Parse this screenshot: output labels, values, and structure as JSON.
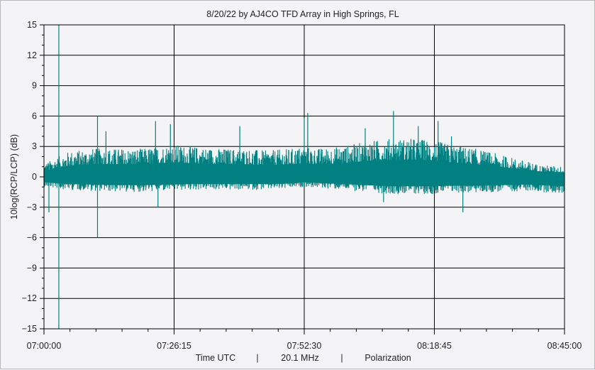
{
  "chart_data": {
    "type": "line",
    "title": "8/20/22  by  AJ4CO TFD Array  in  High Springs, FL",
    "ylabel": "10log(RCP/LCP) (dB)",
    "xlabel_parts": [
      "Time UTC",
      "|",
      "20.1 MHz",
      "|",
      "Polarization"
    ],
    "ylim": [
      -15,
      15
    ],
    "yticks": [
      15,
      12,
      9,
      6,
      3,
      0,
      -3,
      -6,
      -9,
      -12,
      -15
    ],
    "ytick_labels": [
      "15",
      "12",
      "9",
      "6",
      "3",
      "0",
      "−3",
      "−6",
      "−9",
      "−12",
      "−15"
    ],
    "xlim_minutes": [
      0,
      105
    ],
    "xticks_minutes": [
      0,
      26.25,
      52.5,
      78.75,
      105
    ],
    "xtick_labels": [
      "07:00:00",
      "07:26:15",
      "07:52:30",
      "08:18:45",
      "08:45:00"
    ],
    "grid": true,
    "series": [
      {
        "color": "#008080",
        "envelope": {
          "time_minutes": [
            0,
            5,
            10,
            15,
            20,
            26,
            30,
            35,
            40,
            45,
            50,
            52.5,
            55,
            60,
            65,
            70,
            75,
            78.75,
            82,
            87,
            92,
            97,
            100,
            105
          ],
          "upper_db": [
            1.3,
            2.5,
            2.8,
            2.8,
            2.8,
            3.2,
            3.0,
            2.8,
            2.8,
            2.6,
            2.8,
            3.0,
            2.8,
            3.0,
            3.5,
            3.8,
            3.8,
            3.6,
            3.2,
            2.8,
            2.2,
            1.6,
            1.2,
            1.0
          ],
          "lower_db": [
            -1.0,
            -1.3,
            -1.4,
            -1.5,
            -1.5,
            -1.4,
            -1.3,
            -1.3,
            -1.3,
            -1.3,
            -1.2,
            -1.0,
            -1.1,
            -1.3,
            -1.5,
            -1.7,
            -1.7,
            -1.7,
            -1.6,
            -1.6,
            -1.5,
            -1.4,
            -1.5,
            -1.7
          ]
        },
        "spikes": [
          {
            "t": 3,
            "y": 15
          },
          {
            "t": 3,
            "y": -15
          },
          {
            "t": 1,
            "y": -3.5
          },
          {
            "t": 10.8,
            "y": 6
          },
          {
            "t": 10.8,
            "y": -6
          },
          {
            "t": 12.5,
            "y": 4.5
          },
          {
            "t": 22.5,
            "y": 5.5
          },
          {
            "t": 23,
            "y": -3
          },
          {
            "t": 25.5,
            "y": 5.2
          },
          {
            "t": 39.5,
            "y": 5.0
          },
          {
            "t": 52.5,
            "y": 5.8
          },
          {
            "t": 53.2,
            "y": 6.3
          },
          {
            "t": 64.8,
            "y": 4.8
          },
          {
            "t": 68.5,
            "y": -2.5
          },
          {
            "t": 70.5,
            "y": 6.5
          },
          {
            "t": 79.5,
            "y": 5.5
          },
          {
            "t": 84.5,
            "y": -3.5
          },
          {
            "t": 82.2,
            "y": 4.0
          },
          {
            "t": 75.5,
            "y": 5.0
          }
        ]
      }
    ]
  }
}
